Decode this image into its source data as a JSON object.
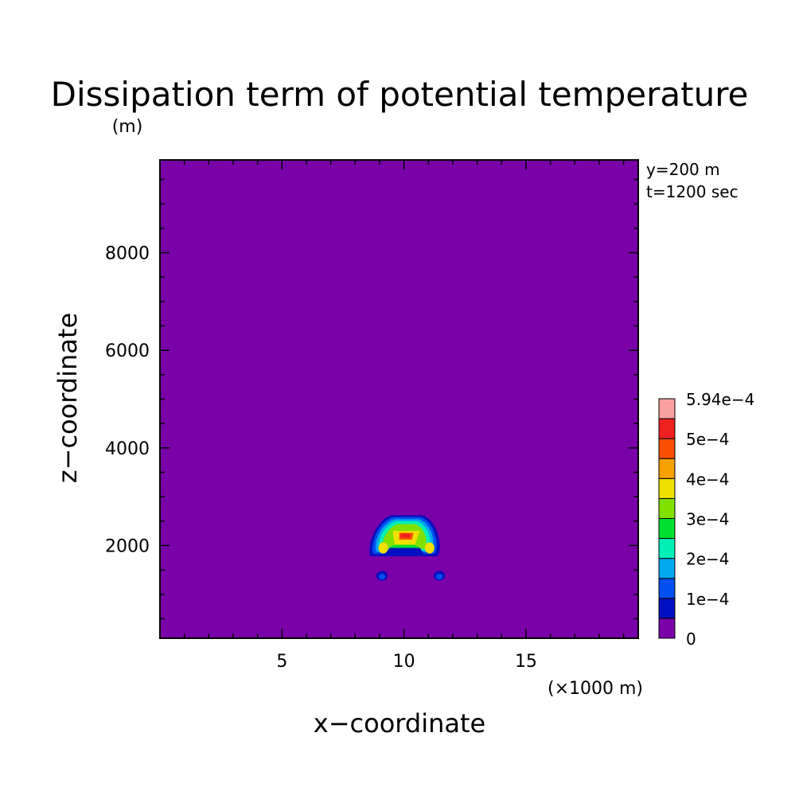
{
  "chart_data": {
    "type": "contour",
    "title": "Dissipation term of potential temperature",
    "units_note": "(m)",
    "xlabel": "x−coordinate",
    "ylabel": "z−coordinate",
    "x_scale_note": "(×1000 m)",
    "info": [
      "y=200 m",
      "t=1200 sec"
    ],
    "xlim": [
      0,
      19.6
    ],
    "ylim": [
      100,
      9900
    ],
    "x_ticks": [
      {
        "value": 5,
        "label": "5"
      },
      {
        "value": 10,
        "label": "10"
      },
      {
        "value": 15,
        "label": "15"
      }
    ],
    "y_ticks": [
      {
        "value": 2000,
        "label": "2000"
      },
      {
        "value": 4000,
        "label": "4000"
      },
      {
        "value": 6000,
        "label": "6000"
      },
      {
        "value": 8000,
        "label": "8000"
      }
    ],
    "colorbar": {
      "levels": [
        "0",
        "",
        "1e−4",
        "",
        "2e−4",
        "",
        "3e−4",
        "",
        "4e−4",
        "",
        "5e−4",
        "",
        "5.94e−4"
      ],
      "colors": [
        "#7a00a8",
        "#0010c0",
        "#0050f0",
        "#00a8f0",
        "#00f0b8",
        "#00e030",
        "#80e000",
        "#f0e000",
        "#f8a000",
        "#f85000",
        "#f02020",
        "#f8a0a0"
      ]
    },
    "field": {
      "background_level": 0,
      "feature": "blob centered near x=10 (×1000 m), z≈2100 m, peak ≈5e−4; two small blobs near x≈9.1 and x≈11.4, z≈1350 m"
    }
  }
}
